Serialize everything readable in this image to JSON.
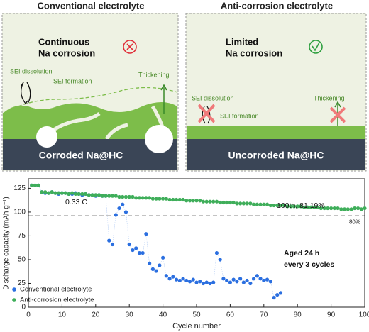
{
  "diagram": {
    "left": {
      "title": "Conventional electrolyte",
      "status": [
        "Continuous",
        "Na corrosion"
      ],
      "sei_dissolution": "SEI dissolution",
      "sei_formation": "SEI formation",
      "thickening": "Thickening",
      "substrate": "Corroded Na@HC"
    },
    "right": {
      "title": "Anti-corrosion electrolyte",
      "status": [
        "Limited",
        "Na corrosion"
      ],
      "sei_dissolution": "SEI dissolution",
      "sei_formation": "SEI formation",
      "thickening": "Thickening",
      "substrate": "Uncorroded Na@HC"
    }
  },
  "chart_data": {
    "type": "scatter",
    "x_label": "Cycle number",
    "y_label": "Discharge capacity (mAh g⁻¹)",
    "xlim": [
      0,
      100
    ],
    "ylim": [
      0,
      135
    ],
    "xticks": [
      0,
      10,
      20,
      30,
      40,
      50,
      60,
      70,
      80,
      90,
      100
    ],
    "yticks": [
      0,
      25,
      50,
      75,
      100,
      125
    ],
    "legend": "lower left",
    "reference_line": {
      "value": 96,
      "label": "80%"
    },
    "annotations": [
      "0.33 C",
      "100th, 81.19%",
      "Aged 24 h",
      "every 3 cycles"
    ],
    "series": [
      {
        "name": "Conventional electrolyte",
        "color": "#2b6fe0",
        "x": [
          1,
          2,
          3,
          4,
          5,
          6,
          7,
          8,
          9,
          10,
          11,
          12,
          13,
          14,
          15,
          16,
          17,
          18,
          19,
          20,
          21,
          22,
          23,
          24,
          25,
          26,
          27,
          28,
          29,
          30,
          31,
          32,
          33,
          34,
          35,
          36,
          37,
          38,
          39,
          40,
          41,
          42,
          43,
          44,
          45,
          46,
          47,
          48,
          49,
          50,
          51,
          52,
          53,
          54,
          55,
          56,
          57,
          58,
          59,
          60,
          61,
          62,
          63,
          64,
          65,
          66,
          67,
          68,
          69,
          70,
          71,
          72,
          73,
          74,
          75
        ],
        "values": [
          128,
          128,
          128,
          121,
          120,
          120,
          121,
          120,
          119,
          120,
          120,
          119,
          119,
          120,
          119,
          118,
          119,
          118,
          118,
          117,
          118,
          117,
          117,
          70,
          66,
          97,
          104,
          108,
          100,
          66,
          60,
          62,
          57,
          57,
          77,
          46,
          40,
          38,
          44,
          52,
          33,
          30,
          32,
          29,
          28,
          30,
          28,
          27,
          29,
          26,
          27,
          25,
          26,
          25,
          26,
          57,
          50,
          30,
          28,
          26,
          29,
          27,
          30,
          26,
          28,
          25,
          30,
          33,
          30,
          28,
          29,
          27,
          10,
          13,
          15
        ]
      },
      {
        "name": "Anti-corrosion electrolyte",
        "color": "#3fae5a",
        "x": [
          1,
          2,
          3,
          4,
          5,
          6,
          7,
          8,
          9,
          10,
          11,
          12,
          13,
          14,
          15,
          16,
          17,
          18,
          19,
          20,
          21,
          22,
          23,
          24,
          25,
          26,
          27,
          28,
          29,
          30,
          31,
          32,
          33,
          34,
          35,
          36,
          37,
          38,
          39,
          40,
          41,
          42,
          43,
          44,
          45,
          46,
          47,
          48,
          49,
          50,
          51,
          52,
          53,
          54,
          55,
          56,
          57,
          58,
          59,
          60,
          61,
          62,
          63,
          64,
          65,
          66,
          67,
          68,
          69,
          70,
          71,
          72,
          73,
          74,
          75,
          76,
          77,
          78,
          79,
          80,
          81,
          82,
          83,
          84,
          85,
          86,
          87,
          88,
          89,
          90,
          91,
          92,
          93,
          94,
          95,
          96,
          97,
          98,
          99,
          100
        ],
        "values": [
          128,
          128,
          128,
          121,
          121,
          120,
          121,
          120,
          120,
          120,
          120,
          119,
          120,
          119,
          119,
          119,
          119,
          118,
          118,
          118,
          118,
          117,
          117,
          117,
          117,
          117,
          116,
          116,
          116,
          116,
          116,
          115,
          115,
          115,
          115,
          115,
          114,
          114,
          114,
          114,
          114,
          113,
          113,
          113,
          113,
          113,
          112,
          112,
          112,
          112,
          112,
          111,
          111,
          111,
          111,
          111,
          110,
          110,
          110,
          110,
          110,
          109,
          109,
          109,
          109,
          109,
          108,
          108,
          108,
          108,
          108,
          107,
          107,
          107,
          107,
          107,
          106,
          106,
          106,
          106,
          106,
          105,
          105,
          105,
          105,
          105,
          104,
          104,
          104,
          104,
          104,
          104,
          103,
          103,
          103,
          103,
          104,
          104,
          103,
          104
        ]
      }
    ]
  }
}
